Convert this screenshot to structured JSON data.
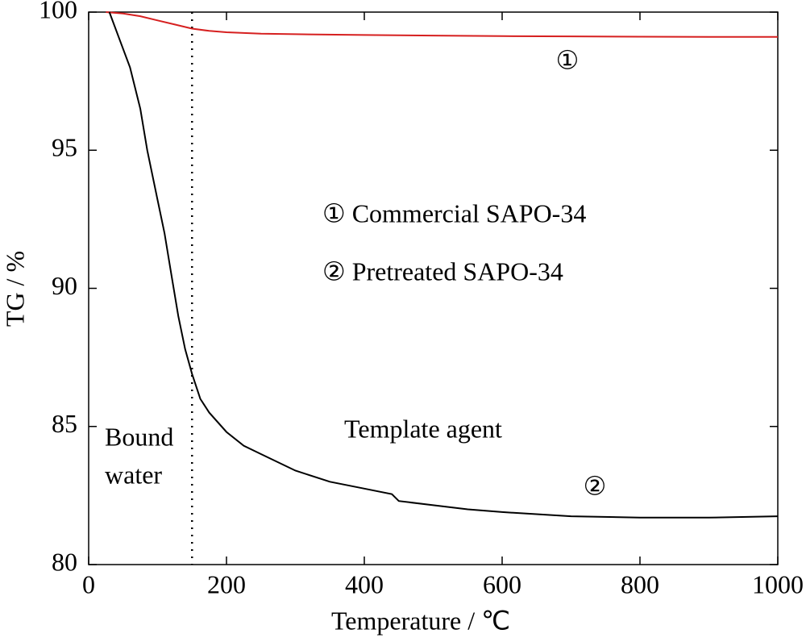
{
  "chart_data": {
    "type": "line",
    "x_label": "Temperature / ℃",
    "y_label": "TG / %",
    "xlim": [
      0,
      1000
    ],
    "ylim": [
      80,
      100
    ],
    "xticks": [
      0,
      200,
      400,
      600,
      800,
      1000
    ],
    "yticks": [
      80,
      85,
      90,
      95,
      100
    ],
    "vline_x": 150,
    "annotations": [
      "① Commercial SAPO-34",
      "② Pretreated SAPO-34",
      "Template agent",
      "Bound",
      "water",
      "①",
      "②"
    ],
    "series": [
      {
        "name": "Commercial SAPO-34",
        "color": "#d62020",
        "x": [
          25,
          50,
          75,
          100,
          125,
          150,
          175,
          200,
          250,
          300,
          400,
          500,
          600,
          700,
          800,
          900,
          1000
        ],
        "values": [
          100,
          99.95,
          99.85,
          99.7,
          99.55,
          99.4,
          99.32,
          99.27,
          99.22,
          99.2,
          99.17,
          99.15,
          99.13,
          99.12,
          99.11,
          99.1,
          99.1
        ]
      },
      {
        "name": "Pretreated SAPO-34",
        "color": "#000000",
        "x": [
          30,
          45,
          60,
          75,
          85,
          100,
          110,
          120,
          130,
          140,
          150,
          162,
          175,
          200,
          225,
          250,
          300,
          350,
          400,
          440,
          450,
          500,
          550,
          600,
          700,
          800,
          900,
          1000
        ],
        "values": [
          100,
          99.0,
          98.0,
          96.5,
          95.0,
          93.2,
          92.0,
          90.5,
          89.0,
          87.8,
          86.9,
          86.0,
          85.5,
          84.8,
          84.3,
          84.0,
          83.4,
          83.0,
          82.75,
          82.55,
          82.3,
          82.15,
          82.0,
          81.9,
          81.75,
          81.7,
          81.7,
          81.75
        ]
      }
    ]
  }
}
